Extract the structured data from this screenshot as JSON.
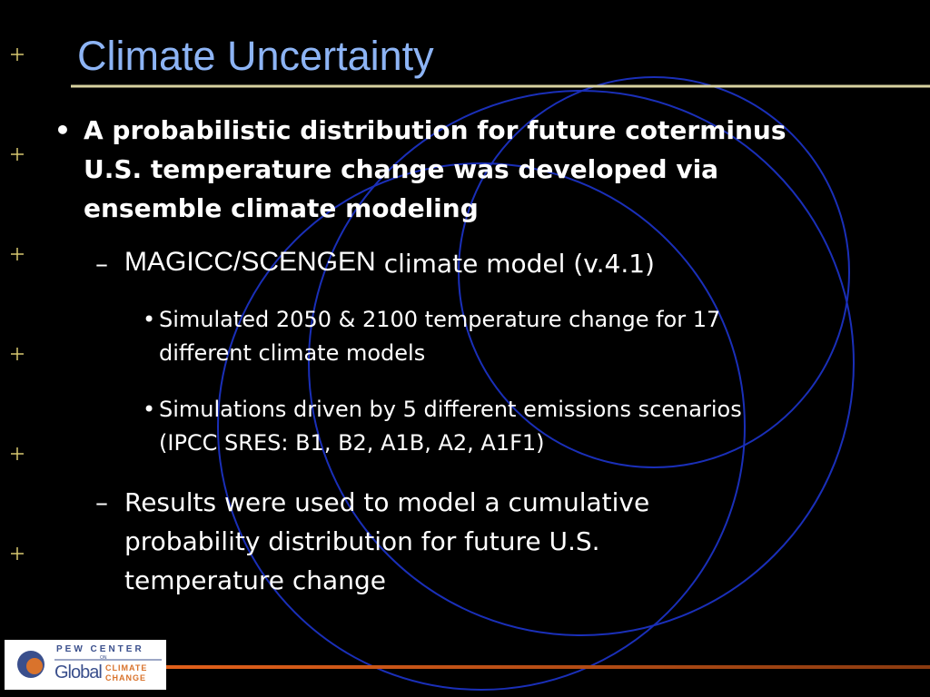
{
  "title": "Climate Uncertainty",
  "bullets": [
    {
      "lines": [
        "A probabilistic distribution for future coterminus",
        "U.S. temperature change was developed via",
        "ensemble climate modeling"
      ],
      "children": [
        {
          "lead": "MAGICC/SCENGEN",
          "lines": [
            "climate model (v.4.1)"
          ],
          "children": [
            {
              "lines": [
                "Simulated 2050 & 2100 temperature change for 17",
                "different climate models"
              ]
            },
            {
              "lines": [
                "Simulations driven by 5 different emissions scenarios",
                "(IPCC SRES: B1, B2, A1B, A2, A1F1)"
              ]
            }
          ]
        },
        {
          "lines": [
            "Results were used to model a cumulative",
            "probability distribution for future U.S.",
            "temperature change"
          ]
        }
      ]
    }
  ],
  "logo": {
    "top": "PEW CENTER",
    "on": "ON",
    "global": "Global",
    "climate": "CLIMATE",
    "change": "CHANGE"
  }
}
